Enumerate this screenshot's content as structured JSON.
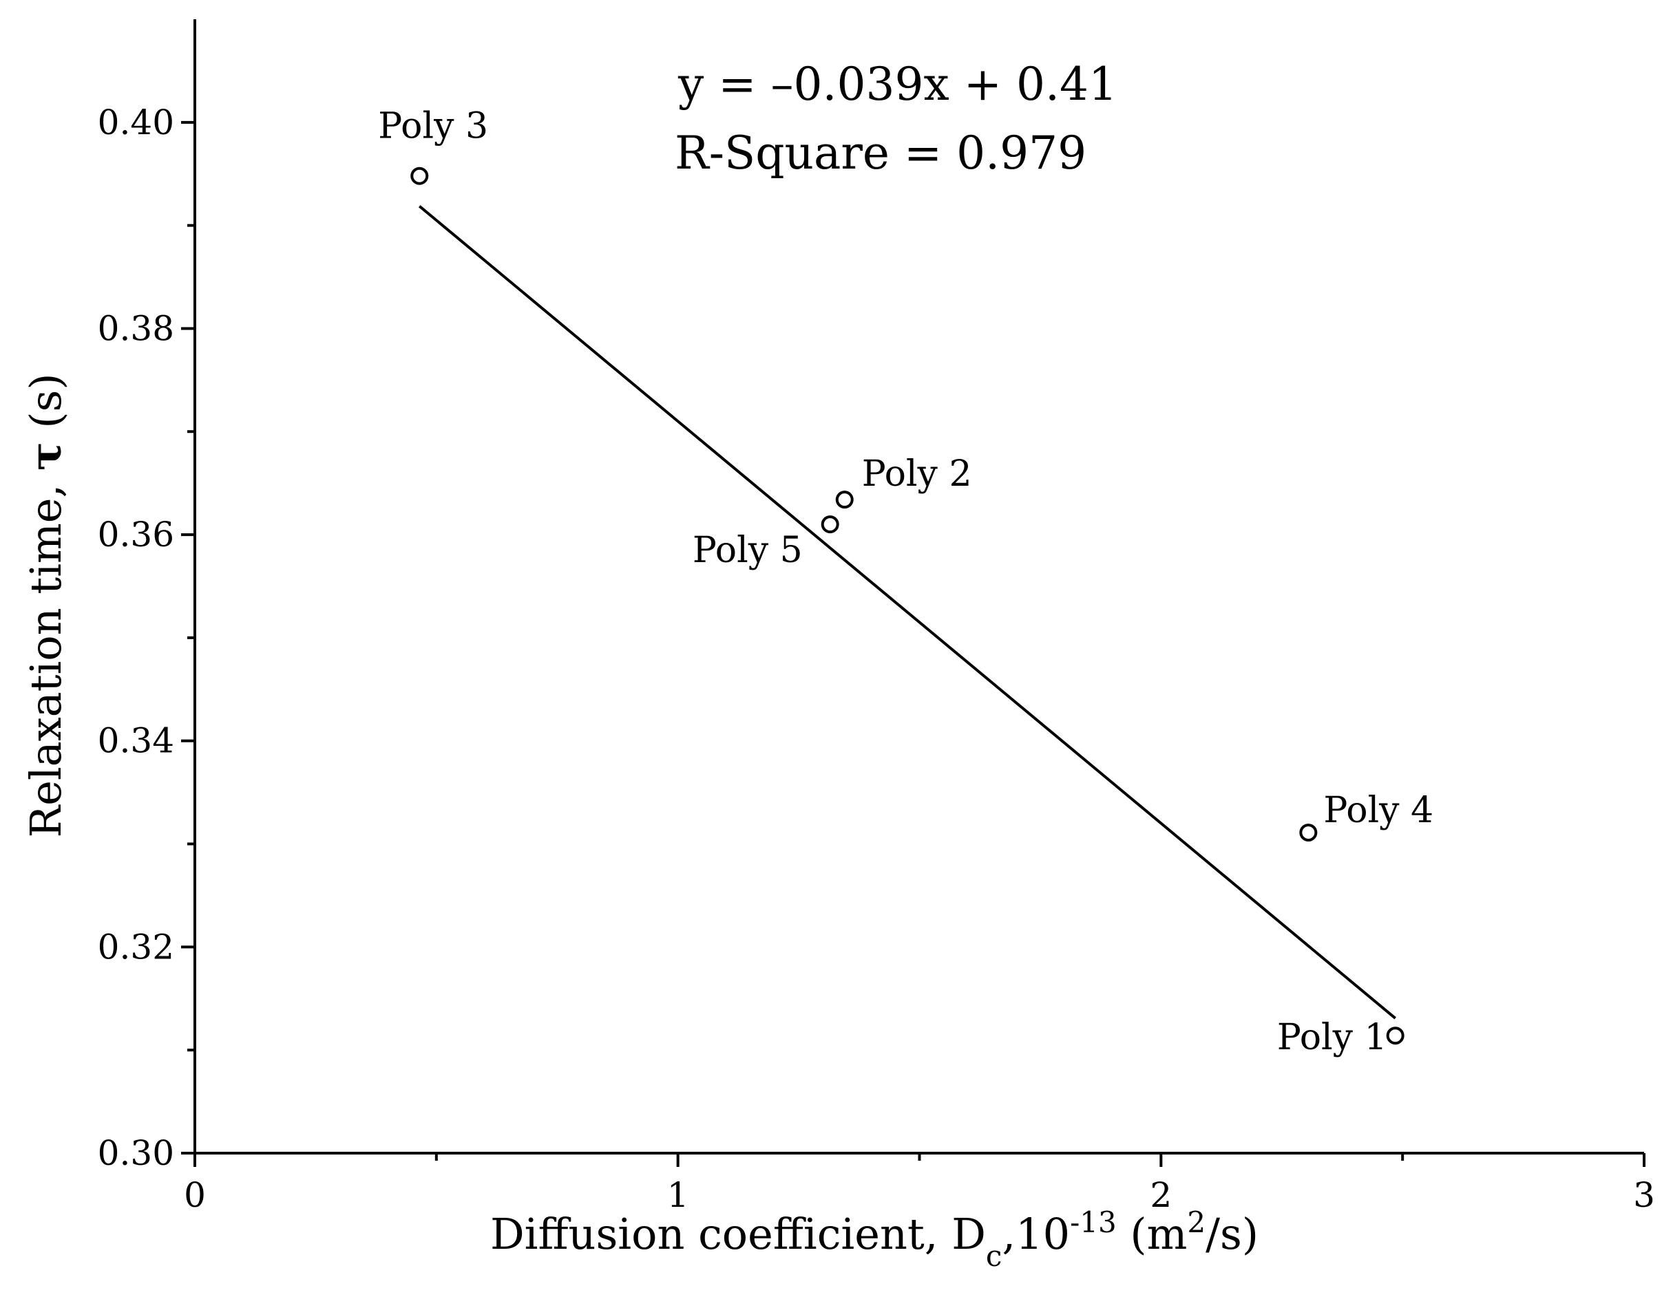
{
  "chart_data": {
    "type": "scatter",
    "xlim": [
      0,
      3
    ],
    "ylim": [
      0.3,
      0.41
    ],
    "x_ticks": [
      0,
      1,
      2,
      3
    ],
    "x_tick_labels": [
      "0",
      "1",
      "2",
      "3"
    ],
    "y_ticks": [
      0.3,
      0.32,
      0.34,
      0.36,
      0.38,
      0.4
    ],
    "y_tick_labels": [
      "0.30",
      "0.32",
      "0.34",
      "0.36",
      "0.38",
      "0.40"
    ],
    "xlabel": {
      "prefix": "Diffusion coefficient, D",
      "sub": "c",
      "mid1": ",10",
      "sup1": "-13",
      "mid2": " (m",
      "sup2": "2",
      "suffix": "/s)"
    },
    "ylabel": {
      "prefix": "Relaxation time, ",
      "symbol": "τ",
      "suffix": " (s)"
    },
    "points": [
      {
        "label": "Poly 3",
        "x": 0.465,
        "y": 0.3948
      },
      {
        "label": "Poly 2",
        "x": 1.345,
        "y": 0.3634
      },
      {
        "label": "Poly 5",
        "x": 1.315,
        "y": 0.361
      },
      {
        "label": "Poly 4",
        "x": 2.305,
        "y": 0.3311
      },
      {
        "label": "Poly 1",
        "x": 2.485,
        "y": 0.3114
      }
    ],
    "fit_line": {
      "slope": -0.039,
      "intercept": 0.41,
      "x_range": [
        0.465,
        2.485
      ]
    },
    "annotations": {
      "equation": "y = –0.039x + 0.41",
      "r_square": "R-Square = 0.979"
    },
    "grid": false
  }
}
